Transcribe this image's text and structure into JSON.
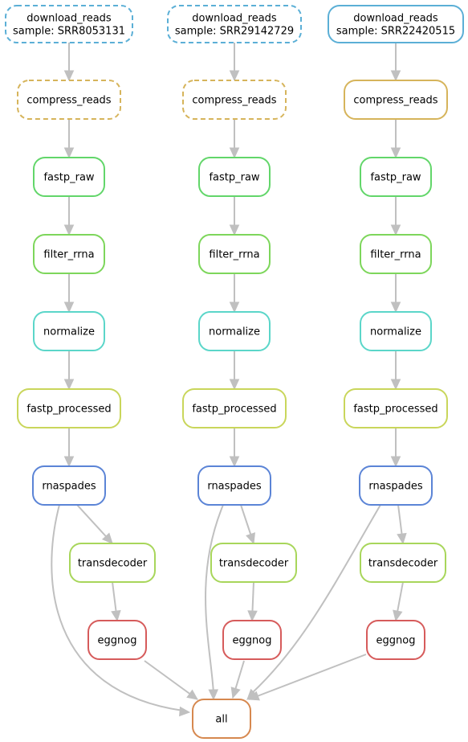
{
  "colors": {
    "download": "#5bafd6",
    "compress": "#d6b45b",
    "fastp_raw": "#62d66a",
    "filter_rrna": "#7dd65b",
    "normalize": "#5bd6c9",
    "fastp_processed": "#c9d65b",
    "rnaspades": "#5b84d6",
    "transdecoder": "#a8d65b",
    "eggnog": "#d65b5b",
    "all": "#d6884f",
    "edge": "#c0c0c0"
  },
  "nodes": [
    {
      "id": "dl1",
      "type": "download",
      "lines": [
        "download_reads",
        "sample: SRR8053131"
      ],
      "dashed": true
    },
    {
      "id": "dl2",
      "type": "download",
      "lines": [
        "download_reads",
        "sample: SRR29142729"
      ],
      "dashed": true
    },
    {
      "id": "dl3",
      "type": "download",
      "lines": [
        "download_reads",
        "sample: SRR22420515"
      ],
      "dashed": false
    },
    {
      "id": "cr1",
      "type": "compress",
      "lines": [
        "compress_reads"
      ],
      "dashed": true
    },
    {
      "id": "cr2",
      "type": "compress",
      "lines": [
        "compress_reads"
      ],
      "dashed": true
    },
    {
      "id": "cr3",
      "type": "compress",
      "lines": [
        "compress_reads"
      ],
      "dashed": false
    },
    {
      "id": "fr1",
      "type": "fastp_raw",
      "lines": [
        "fastp_raw"
      ],
      "dashed": false
    },
    {
      "id": "fr2",
      "type": "fastp_raw",
      "lines": [
        "fastp_raw"
      ],
      "dashed": false
    },
    {
      "id": "fr3",
      "type": "fastp_raw",
      "lines": [
        "fastp_raw"
      ],
      "dashed": false
    },
    {
      "id": "ft1",
      "type": "filter_rrna",
      "lines": [
        "filter_rrna"
      ],
      "dashed": false
    },
    {
      "id": "ft2",
      "type": "filter_rrna",
      "lines": [
        "filter_rrna"
      ],
      "dashed": false
    },
    {
      "id": "ft3",
      "type": "filter_rrna",
      "lines": [
        "filter_rrna"
      ],
      "dashed": false
    },
    {
      "id": "nm1",
      "type": "normalize",
      "lines": [
        "normalize"
      ],
      "dashed": false
    },
    {
      "id": "nm2",
      "type": "normalize",
      "lines": [
        "normalize"
      ],
      "dashed": false
    },
    {
      "id": "nm3",
      "type": "normalize",
      "lines": [
        "normalize"
      ],
      "dashed": false
    },
    {
      "id": "fp1",
      "type": "fastp_processed",
      "lines": [
        "fastp_processed"
      ],
      "dashed": false
    },
    {
      "id": "fp2",
      "type": "fastp_processed",
      "lines": [
        "fastp_processed"
      ],
      "dashed": false
    },
    {
      "id": "fp3",
      "type": "fastp_processed",
      "lines": [
        "fastp_processed"
      ],
      "dashed": false
    },
    {
      "id": "rs1",
      "type": "rnaspades",
      "lines": [
        "rnaspades"
      ],
      "dashed": false
    },
    {
      "id": "rs2",
      "type": "rnaspades",
      "lines": [
        "rnaspades"
      ],
      "dashed": false
    },
    {
      "id": "rs3",
      "type": "rnaspades",
      "lines": [
        "rnaspades"
      ],
      "dashed": false
    },
    {
      "id": "td1",
      "type": "transdecoder",
      "lines": [
        "transdecoder"
      ],
      "dashed": false
    },
    {
      "id": "td2",
      "type": "transdecoder",
      "lines": [
        "transdecoder"
      ],
      "dashed": false
    },
    {
      "id": "td3",
      "type": "transdecoder",
      "lines": [
        "transdecoder"
      ],
      "dashed": false
    },
    {
      "id": "eg1",
      "type": "eggnog",
      "lines": [
        "eggnog"
      ],
      "dashed": false
    },
    {
      "id": "eg2",
      "type": "eggnog",
      "lines": [
        "eggnog"
      ],
      "dashed": false
    },
    {
      "id": "eg3",
      "type": "eggnog",
      "lines": [
        "eggnog"
      ],
      "dashed": false
    },
    {
      "id": "all",
      "type": "all",
      "lines": [
        "all"
      ],
      "dashed": false
    }
  ],
  "edges": [
    [
      "dl1",
      "cr1"
    ],
    [
      "dl2",
      "cr2"
    ],
    [
      "dl3",
      "cr3"
    ],
    [
      "cr1",
      "fr1"
    ],
    [
      "cr2",
      "fr2"
    ],
    [
      "cr3",
      "fr3"
    ],
    [
      "fr1",
      "ft1"
    ],
    [
      "fr2",
      "ft2"
    ],
    [
      "fr3",
      "ft3"
    ],
    [
      "ft1",
      "nm1"
    ],
    [
      "ft2",
      "nm2"
    ],
    [
      "ft3",
      "nm3"
    ],
    [
      "nm1",
      "fp1"
    ],
    [
      "nm2",
      "fp2"
    ],
    [
      "nm3",
      "fp3"
    ],
    [
      "fp1",
      "rs1"
    ],
    [
      "fp2",
      "rs2"
    ],
    [
      "fp3",
      "rs3"
    ],
    [
      "rs1",
      "td1"
    ],
    [
      "rs2",
      "td2"
    ],
    [
      "rs3",
      "td3"
    ],
    [
      "td1",
      "eg1"
    ],
    [
      "td2",
      "eg2"
    ],
    [
      "td3",
      "eg3"
    ],
    [
      "rs1",
      "all"
    ],
    [
      "rs2",
      "all"
    ],
    [
      "rs3",
      "all"
    ],
    [
      "eg1",
      "all"
    ],
    [
      "eg2",
      "all"
    ],
    [
      "eg3",
      "all"
    ]
  ]
}
